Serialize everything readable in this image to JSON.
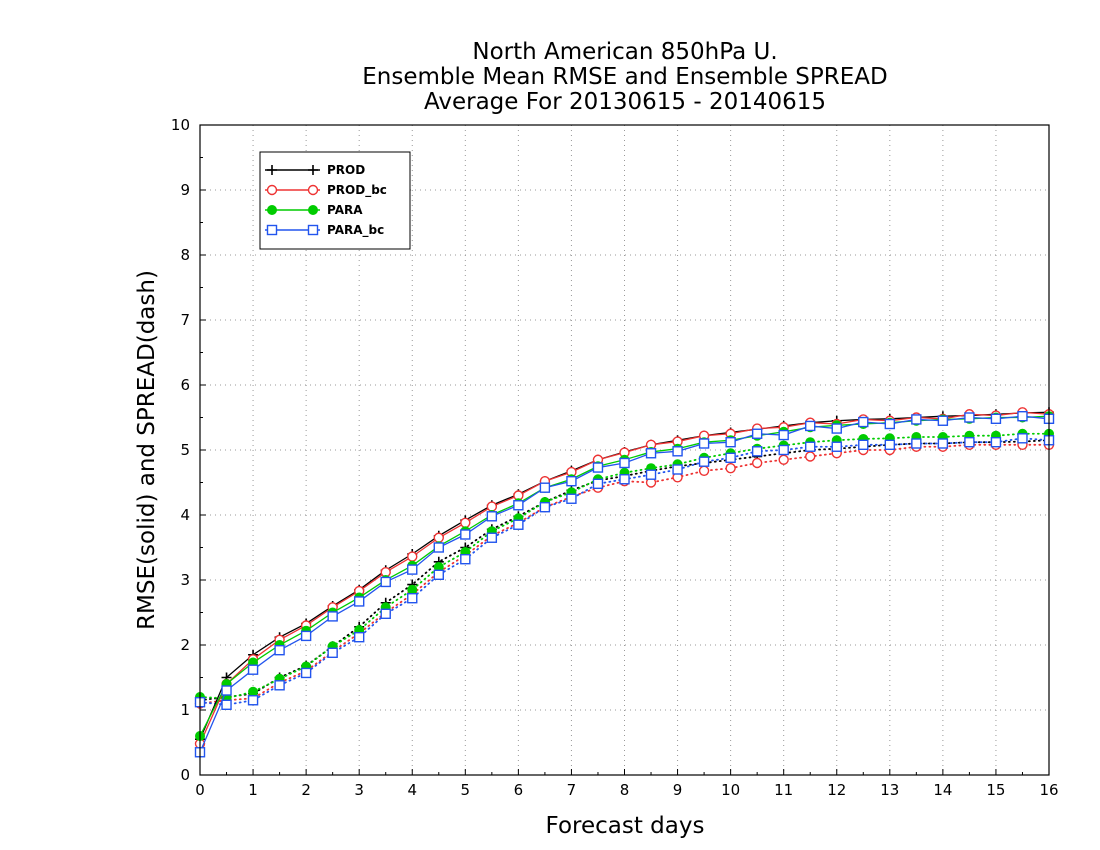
{
  "chart_data": {
    "type": "line",
    "title_lines": [
      "North American 850hPa U.",
      "Ensemble Mean RMSE and Ensemble SPREAD",
      "Average For 20130615 - 20140615"
    ],
    "xlabel": "Forecast days",
    "ylabel": "RMSE(solid) and SPREAD(dash)",
    "xlim": [
      0,
      16
    ],
    "ylim": [
      0,
      10
    ],
    "xticks": [
      0,
      1,
      2,
      3,
      4,
      5,
      6,
      7,
      8,
      9,
      10,
      11,
      12,
      13,
      14,
      15,
      16
    ],
    "yticks": [
      0,
      1,
      2,
      3,
      4,
      5,
      6,
      7,
      8,
      9,
      10
    ],
    "grid": true,
    "legend_position": "top-left",
    "x": [
      0,
      0.5,
      1,
      1.5,
      2,
      2.5,
      3,
      3.5,
      4,
      4.5,
      5,
      5.5,
      6,
      6.5,
      7,
      7.5,
      8,
      8.5,
      9,
      9.5,
      10,
      10.5,
      11,
      11.5,
      12,
      12.5,
      13,
      13.5,
      14,
      14.5,
      15,
      15.5,
      16
    ],
    "series": [
      {
        "name": "PROD",
        "color": "#000000",
        "marker": "plus",
        "rmse": [
          0.55,
          1.5,
          1.85,
          2.12,
          2.33,
          2.6,
          2.85,
          3.15,
          3.4,
          3.68,
          3.92,
          4.15,
          4.32,
          4.52,
          4.68,
          4.85,
          4.97,
          5.08,
          5.15,
          5.22,
          5.27,
          5.32,
          5.37,
          5.42,
          5.45,
          5.47,
          5.48,
          5.5,
          5.52,
          5.53,
          5.55,
          5.57,
          5.58
        ],
        "spread": [
          1.15,
          1.2,
          1.25,
          1.5,
          1.68,
          1.98,
          2.28,
          2.65,
          2.93,
          3.28,
          3.5,
          3.78,
          3.98,
          4.2,
          4.38,
          4.53,
          4.6,
          4.68,
          4.75,
          4.8,
          4.85,
          4.9,
          4.95,
          5.0,
          5.02,
          5.05,
          5.08,
          5.1,
          5.1,
          5.12,
          5.12,
          5.13,
          5.15
        ]
      },
      {
        "name": "PROD_bc",
        "color": "#ee3333",
        "marker": "open-circle",
        "rmse": [
          0.48,
          1.4,
          1.78,
          2.08,
          2.3,
          2.58,
          2.83,
          3.12,
          3.36,
          3.65,
          3.88,
          4.13,
          4.3,
          4.52,
          4.66,
          4.85,
          4.96,
          5.08,
          5.13,
          5.22,
          5.25,
          5.33,
          5.35,
          5.42,
          5.4,
          5.47,
          5.45,
          5.5,
          5.48,
          5.55,
          5.53,
          5.58,
          5.55
        ],
        "spread": [
          1.1,
          1.15,
          1.18,
          1.42,
          1.6,
          1.9,
          2.18,
          2.5,
          2.78,
          3.12,
          3.38,
          3.68,
          3.88,
          4.12,
          4.28,
          4.42,
          4.52,
          4.5,
          4.58,
          4.68,
          4.72,
          4.8,
          4.85,
          4.9,
          4.95,
          5.0,
          5.0,
          5.05,
          5.05,
          5.08,
          5.08,
          5.08,
          5.08
        ]
      },
      {
        "name": "PARA",
        "color": "#00cc00",
        "marker": "filled-circle",
        "rmse": [
          0.6,
          1.4,
          1.73,
          2.0,
          2.22,
          2.5,
          2.73,
          3.0,
          3.22,
          3.52,
          3.75,
          4.0,
          4.18,
          4.42,
          4.55,
          4.75,
          4.85,
          4.97,
          5.02,
          5.12,
          5.15,
          5.22,
          5.28,
          5.35,
          5.38,
          5.4,
          5.42,
          5.45,
          5.47,
          5.48,
          5.5,
          5.5,
          5.52
        ],
        "spread": [
          1.2,
          1.18,
          1.28,
          1.48,
          1.67,
          1.98,
          2.23,
          2.58,
          2.85,
          3.2,
          3.43,
          3.75,
          3.95,
          4.2,
          4.35,
          4.55,
          4.65,
          4.72,
          4.78,
          4.88,
          4.95,
          5.02,
          5.07,
          5.12,
          5.15,
          5.17,
          5.18,
          5.2,
          5.2,
          5.22,
          5.22,
          5.25,
          5.25
        ]
      },
      {
        "name": "PARA_bc",
        "color": "#2255ee",
        "marker": "open-square",
        "rmse": [
          0.35,
          1.3,
          1.62,
          1.92,
          2.14,
          2.44,
          2.67,
          2.97,
          3.16,
          3.5,
          3.7,
          3.98,
          4.15,
          4.42,
          4.52,
          4.73,
          4.8,
          4.95,
          4.98,
          5.1,
          5.12,
          5.25,
          5.23,
          5.37,
          5.33,
          5.43,
          5.4,
          5.47,
          5.45,
          5.5,
          5.48,
          5.52,
          5.48
        ],
        "spread": [
          1.12,
          1.08,
          1.15,
          1.38,
          1.57,
          1.88,
          2.12,
          2.48,
          2.72,
          3.08,
          3.32,
          3.65,
          3.85,
          4.12,
          4.25,
          4.48,
          4.55,
          4.62,
          4.7,
          4.82,
          4.88,
          4.98,
          5.0,
          5.05,
          5.05,
          5.08,
          5.08,
          5.1,
          5.1,
          5.12,
          5.12,
          5.18,
          5.15
        ]
      }
    ]
  }
}
